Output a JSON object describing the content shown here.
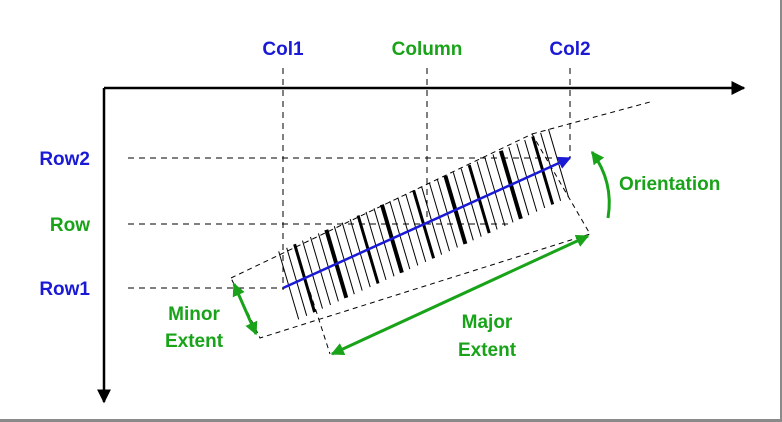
{
  "labels": {
    "col1": "Col1",
    "column": "Column",
    "col2": "Col2",
    "row2": "Row2",
    "row": "Row",
    "row1": "Row1",
    "orientation": "Orientation",
    "minor_line1": "Minor",
    "minor_line2": "Extent",
    "major_line1": "Major",
    "major_line2": "Extent"
  },
  "colors": {
    "blue": "#1a1ad6",
    "green": "#19a319",
    "black": "#000000"
  }
}
